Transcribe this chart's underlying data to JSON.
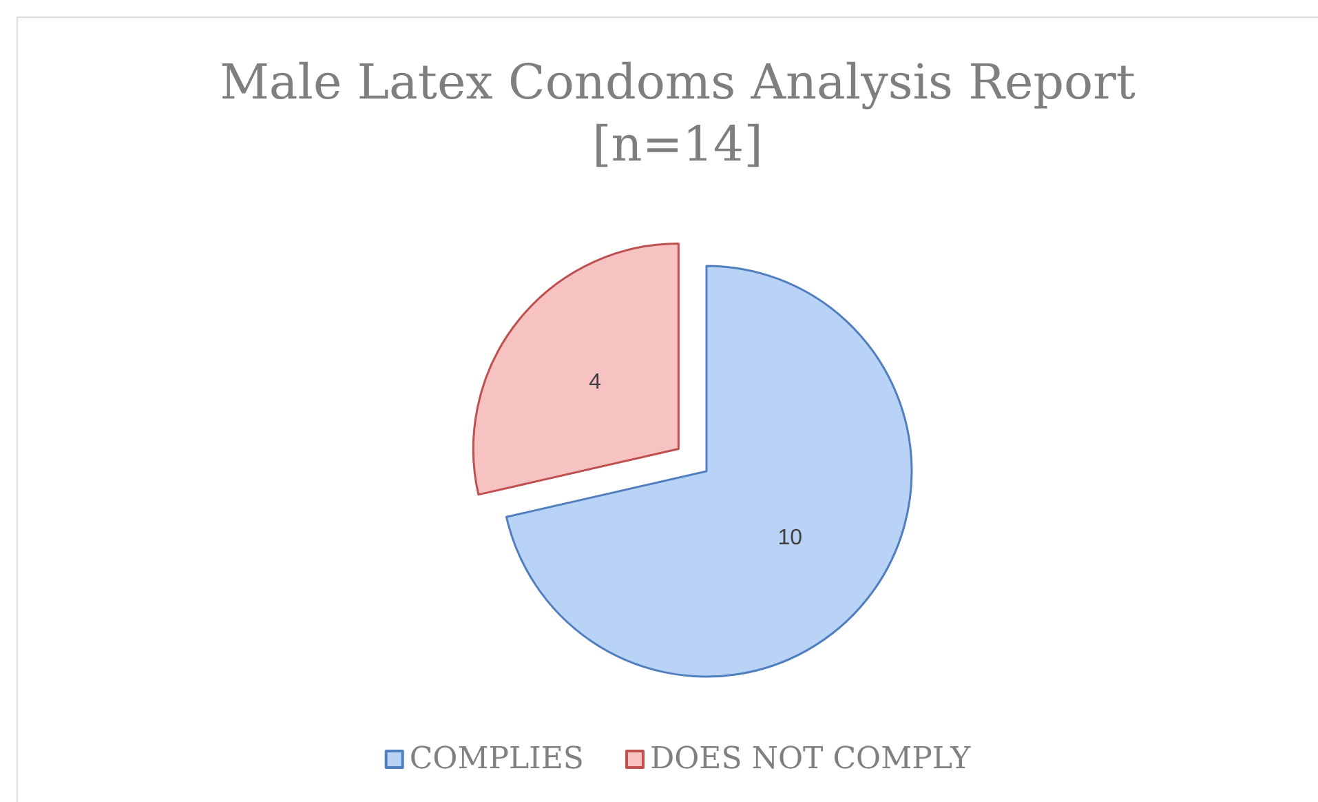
{
  "chart_data": {
    "type": "pie",
    "title": "Male Latex Condoms Analysis Report [n=14]",
    "categories": [
      "COMPLIES",
      "DOES NOT COMPLY"
    ],
    "values": [
      10,
      4
    ],
    "colors": [
      "#b9d3f7",
      "#f7c2c2"
    ],
    "data_labels": true,
    "legend": "bottom"
  }
}
